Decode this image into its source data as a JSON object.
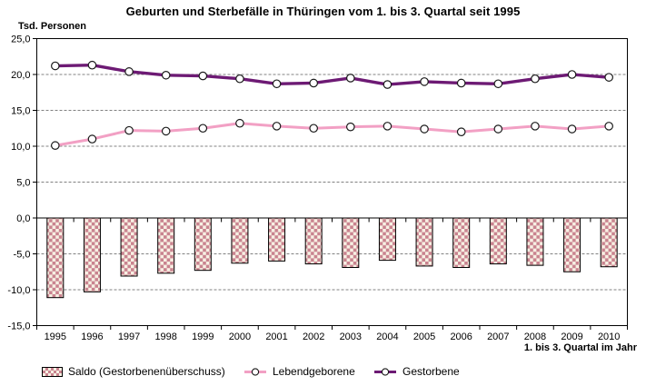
{
  "chart_data": {
    "type": "combo-bar-line",
    "title": "Geburten und Sterbefälle in Thüringen vom 1. bis 3. Quartal seit 1995",
    "y_unit_label": "Tsd. Personen",
    "xlabel": "1. bis 3. Quartal im Jahr",
    "ylabel": "",
    "categories": [
      "1995",
      "1996",
      "1997",
      "1998",
      "1999",
      "2000",
      "2001",
      "2002",
      "2003",
      "2004",
      "2005",
      "2006",
      "2007",
      "2008",
      "2009",
      "2010"
    ],
    "y_axis": {
      "min": -15,
      "max": 25,
      "step": 5,
      "tick_values": [
        25,
        20,
        15,
        10,
        5,
        0,
        -5,
        -10,
        -15
      ],
      "tick_labels": [
        "25,0",
        "20,0",
        "15,0",
        "10,0",
        "5,0",
        "0,0",
        "-5,0",
        "-10,0",
        "-15,0"
      ],
      "grid": "dashed-horizontal"
    },
    "series": [
      {
        "name": "Saldo (Gestorbenenüberschuss)",
        "type": "bar",
        "style": "checkered",
        "values": [
          -11.1,
          -10.3,
          -8.1,
          -7.7,
          -7.3,
          -6.3,
          -6.0,
          -6.4,
          -6.9,
          -5.9,
          -6.7,
          -6.9,
          -6.4,
          -6.6,
          -7.5,
          -6.8
        ]
      },
      {
        "name": "Lebendgeborene",
        "type": "line",
        "marker": "circle",
        "values": [
          10.1,
          11.0,
          12.2,
          12.1,
          12.5,
          13.2,
          12.8,
          12.5,
          12.7,
          12.8,
          12.4,
          12.0,
          12.4,
          12.8,
          12.4,
          12.8
        ]
      },
      {
        "name": "Gestorbene",
        "type": "line",
        "marker": "circle",
        "values": [
          21.2,
          21.3,
          20.4,
          19.9,
          19.8,
          19.4,
          18.7,
          18.8,
          19.5,
          18.6,
          19.0,
          18.8,
          18.7,
          19.4,
          20.0,
          19.6
        ]
      }
    ],
    "colors": {
      "saldo_fill_pink": "#c9838f",
      "saldo_fill_cream": "#f7f0e3",
      "saldo_border": "#000000",
      "lebendgeborene_line": "#f2a0c4",
      "gestorbene_line": "#6d1a74",
      "marker_fill": "#ffffff",
      "marker_stroke": "#1a1a1a",
      "grid": "#808080",
      "axis": "#000000"
    },
    "legend_position": "bottom"
  }
}
